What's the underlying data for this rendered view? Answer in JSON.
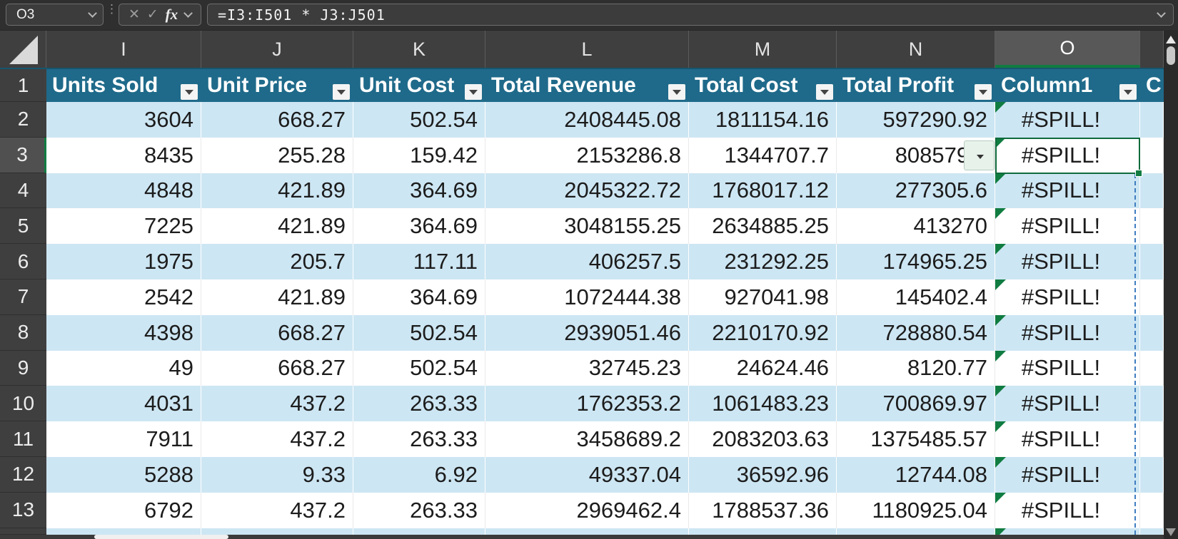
{
  "formula_bar": {
    "cell_reference": "O3",
    "formula": "=I3:I501 * J3:J501",
    "cancel_icon": "✕",
    "enter_icon": "✓",
    "fx_label": "fx",
    "menu_dots": "⋮"
  },
  "sheet": {
    "column_letters": [
      "I",
      "J",
      "K",
      "L",
      "M",
      "N",
      "O",
      ""
    ],
    "selected_column": "O",
    "selected_row_number": 3,
    "active_cell": "O3"
  },
  "table": {
    "headers": [
      "Units Sold",
      "Unit Price",
      "Unit Cost",
      "Total Revenue",
      "Total Cost",
      "Total Profit",
      "Column1",
      "C"
    ],
    "header_row_number": "1",
    "rows": [
      {
        "row": "2",
        "values": [
          "3604",
          "668.27",
          "502.54",
          "2408445.08",
          "1811154.16",
          "597290.92",
          "#SPILL!",
          ""
        ]
      },
      {
        "row": "3",
        "values": [
          "8435",
          "255.28",
          "159.42",
          "2153286.8",
          "1344707.7",
          "808579.1",
          "#SPILL!",
          ""
        ]
      },
      {
        "row": "4",
        "values": [
          "4848",
          "421.89",
          "364.69",
          "2045322.72",
          "1768017.12",
          "277305.6",
          "#SPILL!",
          ""
        ]
      },
      {
        "row": "5",
        "values": [
          "7225",
          "421.89",
          "364.69",
          "3048155.25",
          "2634885.25",
          "413270",
          "#SPILL!",
          ""
        ]
      },
      {
        "row": "6",
        "values": [
          "1975",
          "205.7",
          "117.11",
          "406257.5",
          "231292.25",
          "174965.25",
          "#SPILL!",
          ""
        ]
      },
      {
        "row": "7",
        "values": [
          "2542",
          "421.89",
          "364.69",
          "1072444.38",
          "927041.98",
          "145402.4",
          "#SPILL!",
          ""
        ]
      },
      {
        "row": "8",
        "values": [
          "4398",
          "668.27",
          "502.54",
          "2939051.46",
          "2210170.92",
          "728880.54",
          "#SPILL!",
          ""
        ]
      },
      {
        "row": "9",
        "values": [
          "49",
          "668.27",
          "502.54",
          "32745.23",
          "24624.46",
          "8120.77",
          "#SPILL!",
          ""
        ]
      },
      {
        "row": "10",
        "values": [
          "4031",
          "437.2",
          "263.33",
          "1762353.2",
          "1061483.23",
          "700869.97",
          "#SPILL!",
          ""
        ]
      },
      {
        "row": "11",
        "values": [
          "7911",
          "437.2",
          "263.33",
          "3458689.2",
          "2083203.63",
          "1375485.57",
          "#SPILL!",
          ""
        ]
      },
      {
        "row": "12",
        "values": [
          "5288",
          "9.33",
          "6.92",
          "49337.04",
          "36592.96",
          "12744.08",
          "#SPILL!",
          ""
        ]
      },
      {
        "row": "13",
        "values": [
          "6792",
          "437.2",
          "263.33",
          "2969462.4",
          "1788537.36",
          "1180925.04",
          "#SPILL!",
          ""
        ]
      }
    ],
    "error_value": "#SPILL!",
    "error_warning": {
      "on_cell": "N3",
      "icon": "⚠"
    }
  },
  "colors": {
    "table_header_teal": "#1F6A8A",
    "banded_row_blue": "#CDE6F3",
    "selection_green": "#107C41",
    "spill_dash_blue": "#3F7DC0",
    "warning_orange": "#E8A33D",
    "chrome_dark": "#2F2F2F"
  }
}
